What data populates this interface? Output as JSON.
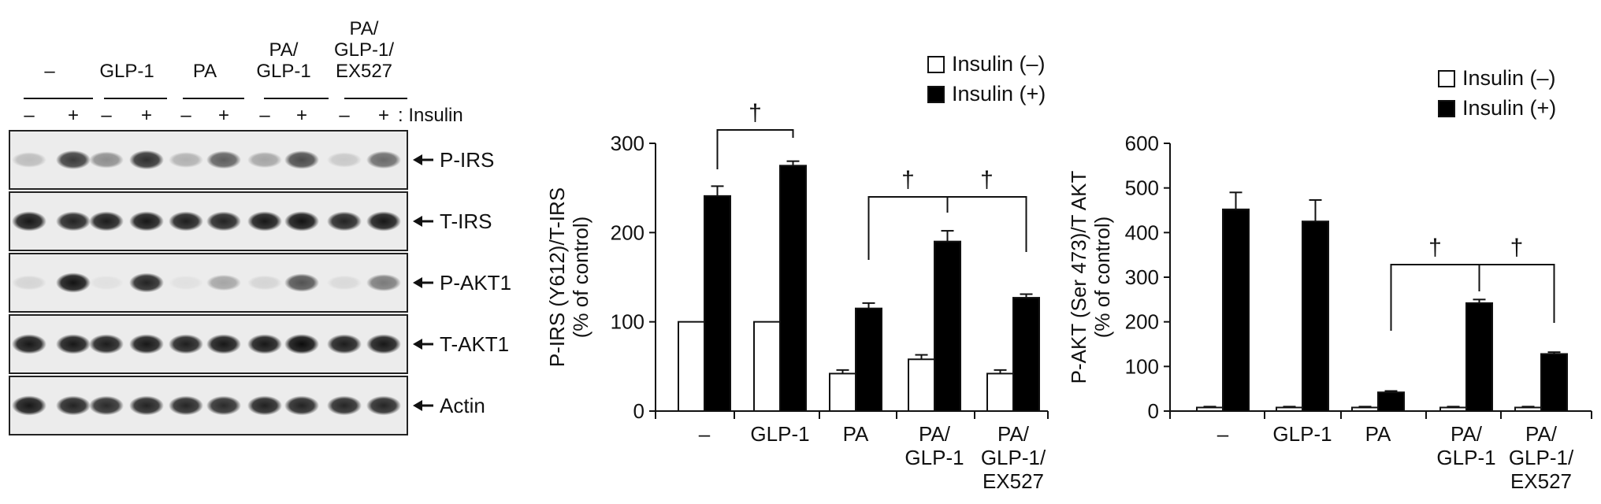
{
  "blot": {
    "groups": [
      {
        "label_lines": [
          "–"
        ]
      },
      {
        "label_lines": [
          "GLP-1"
        ]
      },
      {
        "label_lines": [
          "PA"
        ]
      },
      {
        "label_lines": [
          "PA/",
          "GLP-1"
        ]
      },
      {
        "label_lines": [
          "PA/",
          "GLP-1/",
          "EX527"
        ]
      }
    ],
    "treatment_label": ": Insulin",
    "minus_sign": "–",
    "plus_sign": "+",
    "rows": [
      {
        "name": "P-IRS",
        "label": "P-IRS",
        "intensities": [
          0.2,
          0.75,
          0.4,
          0.8,
          0.25,
          0.6,
          0.3,
          0.68,
          0.15,
          0.55
        ]
      },
      {
        "name": "T-IRS",
        "label": "T-IRS",
        "intensities": [
          0.9,
          0.85,
          0.88,
          0.9,
          0.87,
          0.85,
          0.9,
          0.92,
          0.85,
          0.9
        ]
      },
      {
        "name": "P-AKT1",
        "label": "P-AKT1",
        "intensities": [
          0.1,
          0.92,
          0.05,
          0.85,
          0.05,
          0.3,
          0.1,
          0.65,
          0.08,
          0.48
        ]
      },
      {
        "name": "T-AKT1",
        "label": "T-AKT1",
        "intensities": [
          0.9,
          0.9,
          0.88,
          0.9,
          0.87,
          0.9,
          0.9,
          0.95,
          0.88,
          0.9
        ]
      },
      {
        "name": "Actin",
        "label": "Actin",
        "intensities": [
          0.9,
          0.85,
          0.82,
          0.85,
          0.84,
          0.82,
          0.86,
          0.85,
          0.84,
          0.84
        ]
      }
    ]
  },
  "chart_data": [
    {
      "type": "bar",
      "ylabel": "P-IRS (Y612)/T-IRS",
      "ylabel_unit": "(% of control)",
      "ylim": [
        0,
        300
      ],
      "yticks": [
        0,
        100,
        200,
        300
      ],
      "categories": [
        [
          "–"
        ],
        [
          "GLP-1"
        ],
        [
          "PA"
        ],
        [
          "PA/",
          "GLP-1"
        ],
        [
          "PA/",
          "GLP-1/",
          "EX527"
        ]
      ],
      "series": [
        {
          "name": "Insulin (–)",
          "color": "#ffffff",
          "values": [
            100,
            100,
            42,
            58,
            42
          ],
          "errors": [
            0,
            0,
            4,
            5,
            4
          ]
        },
        {
          "name": "Insulin (+)",
          "color": "#000000",
          "values": [
            241,
            275,
            115,
            190,
            127
          ],
          "errors": [
            11,
            5,
            6,
            12,
            4
          ]
        }
      ],
      "significance": [
        {
          "from": 0,
          "to": 1,
          "symbol": "†"
        },
        {
          "from": 2,
          "to": 3,
          "symbol": "†"
        },
        {
          "from": 3,
          "to": 4,
          "symbol": "†"
        }
      ],
      "legend_position": "top-right"
    },
    {
      "type": "bar",
      "ylabel": "P-AKT (Ser 473)/T AKT",
      "ylabel_unit": "(% of control)",
      "ylim": [
        0,
        600
      ],
      "yticks": [
        0,
        100,
        200,
        300,
        400,
        500,
        600
      ],
      "categories": [
        [
          "–"
        ],
        [
          "GLP-1"
        ],
        [
          "PA"
        ],
        [
          "PA/",
          "GLP-1"
        ],
        [
          "PA/",
          "GLP-1/",
          "EX527"
        ]
      ],
      "series": [
        {
          "name": "Insulin (–)",
          "color": "#ffffff",
          "values": [
            8,
            8,
            8,
            8,
            8
          ],
          "errors": [
            2,
            2,
            2,
            2,
            2
          ]
        },
        {
          "name": "Insulin (+)",
          "color": "#000000",
          "values": [
            452,
            425,
            42,
            242,
            128
          ],
          "errors": [
            38,
            48,
            3,
            8,
            4
          ]
        }
      ],
      "significance": [
        {
          "from": 2,
          "to": 3,
          "symbol": "†"
        },
        {
          "from": 3,
          "to": 4,
          "symbol": "†"
        }
      ],
      "legend_position": "top-right"
    }
  ]
}
